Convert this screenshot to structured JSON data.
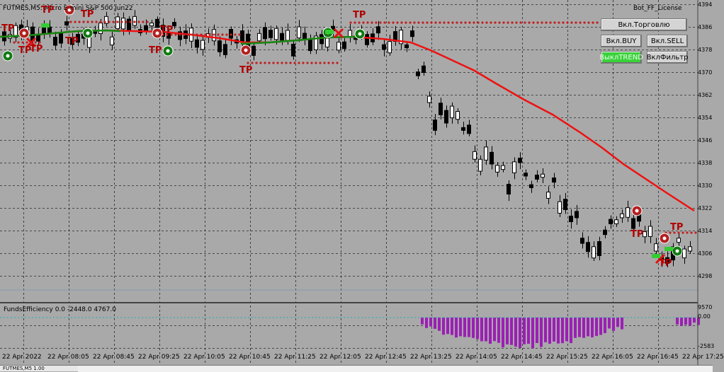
{
  "chart": {
    "symbol_header": "FUTMES,M5: Micro E-mini S&P 500 Jun22",
    "ea_label": "Bot_FF_License",
    "indicator_header": "FundsEfficiency 0.0 -2448.0 4767.0",
    "bottom_tab": "FUTMES,M5 1.00",
    "y_labels": [
      "4394",
      "4386",
      "4378",
      "4370",
      "4362",
      "4354",
      "4346",
      "4338",
      "4330",
      "4322",
      "4314",
      "4306",
      "4298"
    ],
    "sub_y_labels": [
      "9570",
      "0.00",
      "-2583"
    ],
    "x_labels": [
      "22 Apr 2022",
      "22 Apr 08:05",
      "22 Apr 08:45",
      "22 Apr 09:25",
      "22 Apr 10:05",
      "22 Apr 10:45",
      "22 Apr 11:25",
      "22 Apr 12:05",
      "22 Apr 12:45",
      "22 Apr 13:25",
      "22 Apr 14:05",
      "22 Apr 14:45",
      "22 Apr 15:25",
      "22 Apr 16:05",
      "22 Apr 16:45",
      "22 Apr 17:25"
    ],
    "tp_label": "TP",
    "colors": {
      "bg": "#a9a9a9",
      "ma_red": "#ee1111",
      "ma_green": "#138a13",
      "histogram": "#9b1fb4",
      "grid": "#3a3a3a"
    }
  },
  "buttons": {
    "trading": "Вкл.Торговлю",
    "buy": "Вкл.BUY",
    "sell": "Вкл.SELL",
    "trend": "ВыклTREND",
    "filter": "ВклФильтр"
  }
}
